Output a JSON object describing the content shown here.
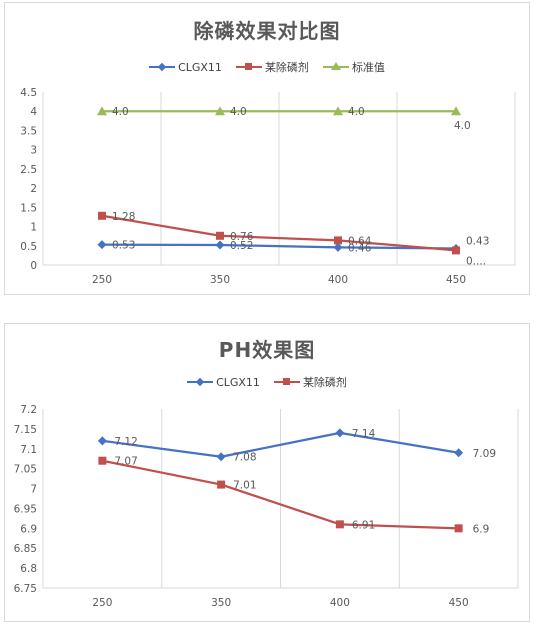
{
  "chart_data": [
    {
      "type": "line",
      "title": "除磷效果对比图",
      "categories": [
        "250",
        "350",
        "400",
        "450"
      ],
      "ylim": [
        0,
        4.5
      ],
      "yticks": [
        "0",
        "0.5",
        "1",
        "1.5",
        "2",
        "2.5",
        "3",
        "3.5",
        "4",
        "4.5"
      ],
      "grid": "vertical",
      "legend": "top",
      "series": [
        {
          "name": "CLGX11",
          "values": [
            0.53,
            0.52,
            0.46,
            0.43
          ],
          "labels": [
            "0.53",
            "0.52",
            "0.46",
            "0.43"
          ],
          "color": "#4472c4",
          "marker": "diamond"
        },
        {
          "name": "某除磷剂",
          "values": [
            1.28,
            0.76,
            0.64,
            0.38
          ],
          "labels": [
            "1.28",
            "0.76",
            "0.64",
            "0...."
          ],
          "color": "#c0504d",
          "marker": "square"
        },
        {
          "name": "标准值",
          "values": [
            4.0,
            4.0,
            4.0,
            4.0
          ],
          "labels": [
            "4.0",
            "4.0",
            "4.0",
            "4.0"
          ],
          "color": "#9bbb59",
          "marker": "triangle"
        }
      ]
    },
    {
      "type": "line",
      "title": "PH效果图",
      "categories": [
        "250",
        "350",
        "400",
        "450"
      ],
      "ylim": [
        6.75,
        7.2
      ],
      "yticks": [
        "6.75",
        "6.8",
        "6.85",
        "6.9",
        "6.95",
        "7",
        "7.05",
        "7.1",
        "7.15",
        "7.2"
      ],
      "grid": "vertical",
      "legend": "top",
      "series": [
        {
          "name": "CLGX11",
          "values": [
            7.12,
            7.08,
            7.14,
            7.09
          ],
          "labels": [
            "7.12",
            "7.08",
            "7.14",
            "7.09"
          ],
          "color": "#4472c4",
          "marker": "diamond"
        },
        {
          "name": "某除磷剂",
          "values": [
            7.07,
            7.01,
            6.91,
            6.9
          ],
          "labels": [
            "7.07",
            "7.01",
            "6.91",
            "6.9"
          ],
          "color": "#c0504d",
          "marker": "square"
        }
      ]
    }
  ]
}
